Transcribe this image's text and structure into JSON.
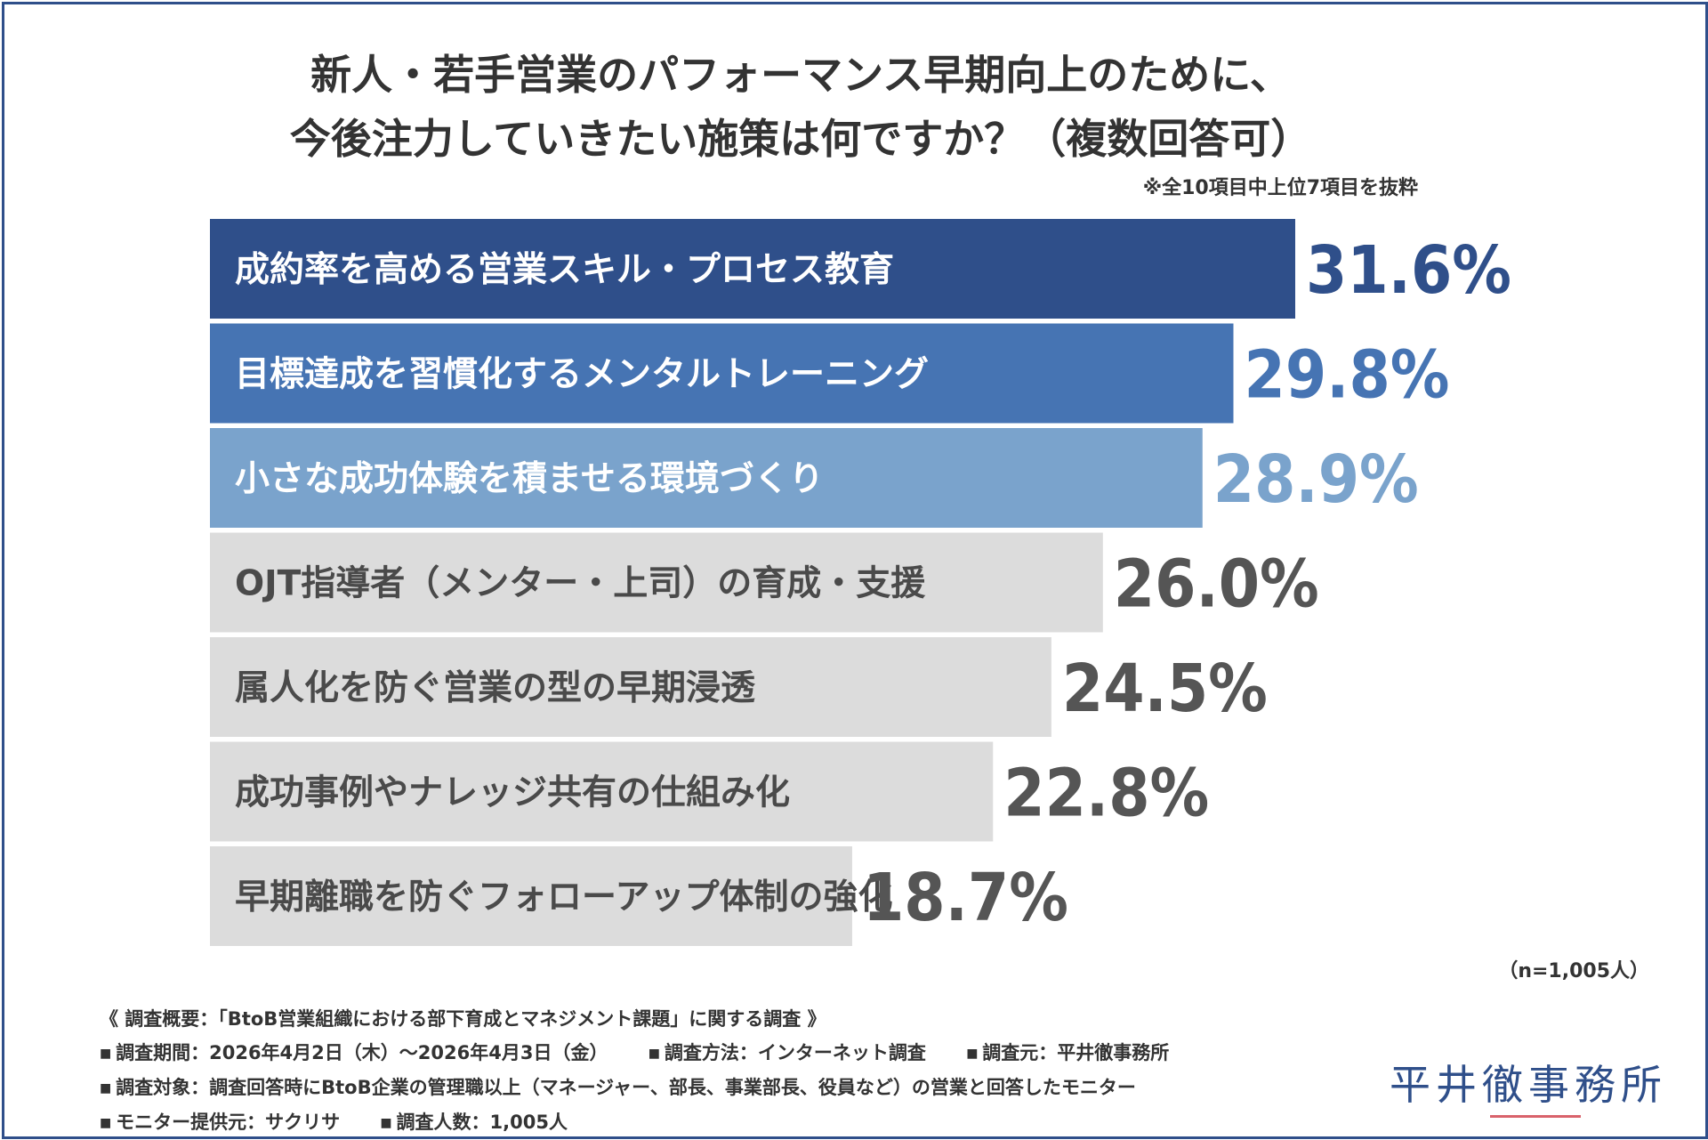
{
  "title_line1": "新人・若手営業のパフォーマンス早期向上のために、",
  "title_line2": "今後注力していきたい施策は何ですか？（複数回答可）",
  "note": "※全10項目中上位7項目を抜粋",
  "sample_size": "（n=1,005人）",
  "chart_data": {
    "type": "bar",
    "orientation": "horizontal",
    "title": "新人・若手営業のパフォーマンス早期向上のために、今後注力していきたい施策は何ですか？（複数回答可）",
    "unit": "%",
    "xlim": [
      0,
      37
    ],
    "categories": [
      "成約率を高める営業スキル・プロセス教育",
      "目標達成を習慣化するメンタルトレーニング",
      "小さな成功体験を積ませる環境づくり",
      "OJT指導者（メンター・上司）の育成・支援",
      "属人化を防ぐ営業の型の早期浸透",
      "成功事例やナレッジ共有の仕組み化",
      "早期離職を防ぐフォローアップ体制の強化"
    ],
    "values": [
      31.6,
      29.8,
      28.9,
      26.0,
      24.5,
      22.8,
      18.7
    ],
    "value_labels": [
      "31.6%",
      "29.8%",
      "28.9%",
      "26.0%",
      "24.5%",
      "22.8%",
      "18.7%"
    ],
    "bar_colors": [
      "#2f4f8a",
      "#4674b3",
      "#7aa3cc",
      "#dcdcdc",
      "#dcdcdc",
      "#dcdcdc",
      "#dcdcdc"
    ],
    "label_colors": [
      "#ffffff",
      "#ffffff",
      "#ffffff",
      "#4a4a4a",
      "#4a4a4a",
      "#4a4a4a",
      "#4a4a4a"
    ],
    "value_colors": [
      "#2f4f8a",
      "#4674b3",
      "#7aa3cc",
      "#555555",
      "#555555",
      "#555555",
      "#555555"
    ]
  },
  "footer": {
    "heading": "《 調査概要：「BtoB営業組織における部下育成とマネジメント課題」に関する調査 》",
    "period": "調査期間：2026年4月2日（木）〜2026年4月3日（金）",
    "method": "調査方法：インターネット調査",
    "source": "調査元：平井徹事務所",
    "target": "調査対象：調査回答時にBtoB企業の管理職以上（マネージャー、部長、事業部長、役員など）の営業と回答したモニター",
    "provider": "モニター提供元：サクリサ",
    "count": "調査人数：1,005人"
  },
  "brand": "平井徹事務所"
}
